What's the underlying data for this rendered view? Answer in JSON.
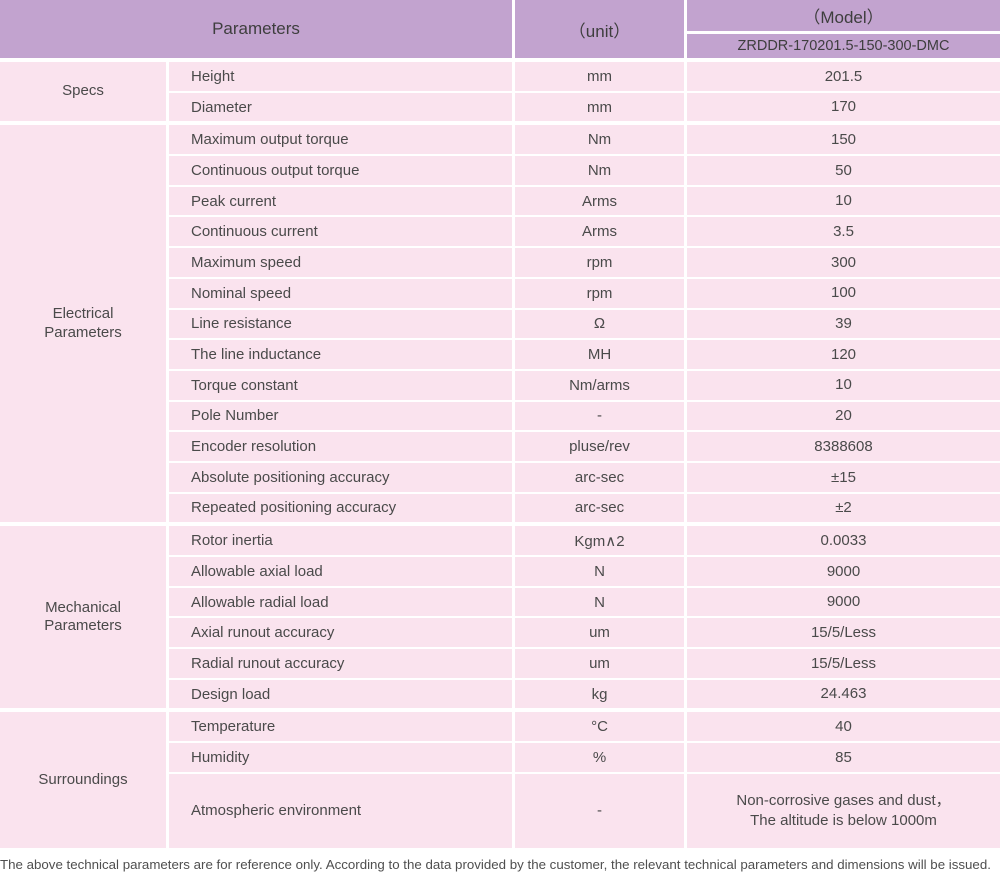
{
  "table": {
    "header": {
      "parameters": "Parameters",
      "unit": "（unit）",
      "model_label": "（Model）",
      "model_value": "ZRDDR-170201.5-150-300-DMC"
    },
    "sections": [
      {
        "group": "Specs",
        "rows": [
          {
            "param": "Height",
            "unit": "mm",
            "value": "201.5"
          },
          {
            "param": "Diameter",
            "unit": "mm",
            "value": "170"
          }
        ]
      },
      {
        "group": "Electrical Parameters",
        "rows": [
          {
            "param": "Maximum output torque",
            "unit": "Nm",
            "value": "150"
          },
          {
            "param": "Continuous output torque",
            "unit": "Nm",
            "value": "50"
          },
          {
            "param": "Peak current",
            "unit": "Arms",
            "value": "10"
          },
          {
            "param": "Continuous current",
            "unit": "Arms",
            "value": "3.5"
          },
          {
            "param": "Maximum speed",
            "unit": "rpm",
            "value": "300"
          },
          {
            "param": "Nominal speed",
            "unit": "rpm",
            "value": "100"
          },
          {
            "param": "Line resistance",
            "unit": "Ω",
            "value": "39"
          },
          {
            "param": "The line inductance",
            "unit": "MH",
            "value": "120"
          },
          {
            "param": "Torque constant",
            "unit": "Nm/arms",
            "value": "10"
          },
          {
            "param": "Pole Number",
            "unit": "-",
            "value": "20"
          },
          {
            "param": "Encoder resolution",
            "unit": "pluse/rev",
            "value": "8388608"
          },
          {
            "param": "Absolute positioning accuracy",
            "unit": "arc-sec",
            "value": "±15"
          },
          {
            "param": "Repeated positioning accuracy",
            "unit": "arc-sec",
            "value": "±2"
          }
        ]
      },
      {
        "group": "Mechanical Parameters",
        "rows": [
          {
            "param": "Rotor inertia",
            "unit": "Kgm∧2",
            "value": "0.0033"
          },
          {
            "param": "Allowable axial load",
            "unit": "N",
            "value": "9000"
          },
          {
            "param": "Allowable radial load",
            "unit": "N",
            "value": "9000"
          },
          {
            "param": "Axial runout accuracy",
            "unit": "um",
            "value": "15/5/Less"
          },
          {
            "param": "Radial runout accuracy",
            "unit": "um",
            "value": "15/5/Less"
          },
          {
            "param": "Design load",
            "unit": "kg",
            "value": "24.463"
          }
        ]
      },
      {
        "group": "Surroundings",
        "rows": [
          {
            "param": "Temperature",
            "unit": "°C",
            "value": "40"
          },
          {
            "param": "Humidity",
            "unit": "%",
            "value": "85"
          },
          {
            "param": "Atmospheric environment",
            "unit": "-",
            "value": "Non-corrosive gases and dust，\nThe altitude is below 1000m"
          }
        ]
      }
    ],
    "footer": "The above technical parameters are for reference only. According to the data provided by the customer, the relevant technical parameters and dimensions will be issued."
  },
  "colors": {
    "header_bg": "#c2a3cf",
    "cell_bg": "#fae3ee",
    "text": "#4a4a4a"
  }
}
